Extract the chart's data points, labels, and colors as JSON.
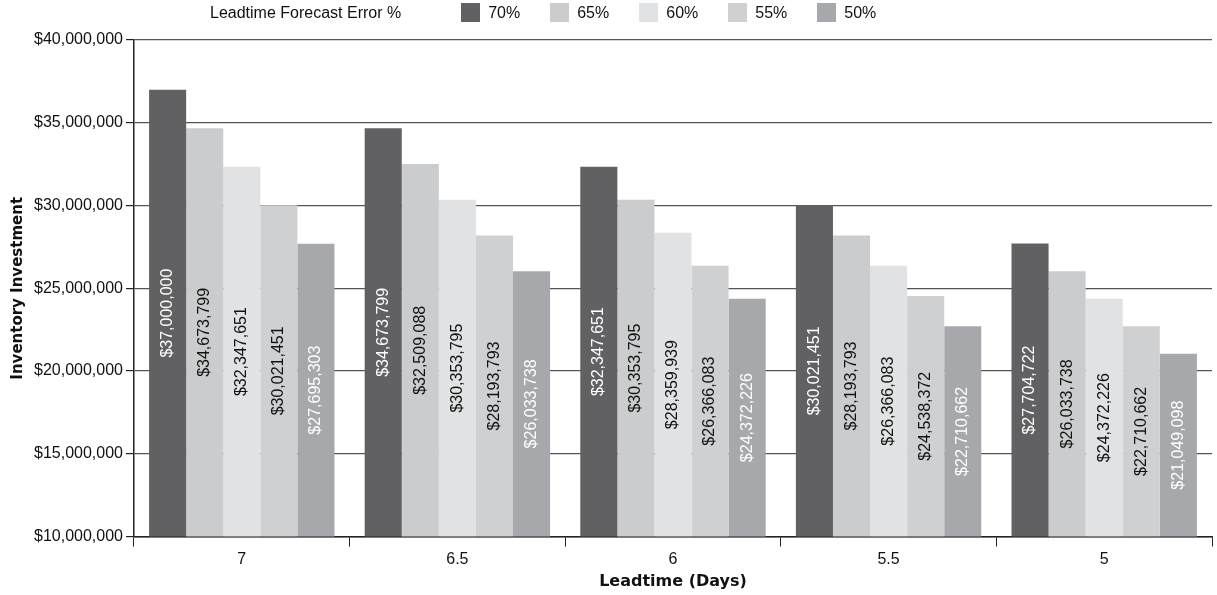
{
  "chart_data": {
    "type": "bar",
    "xlabel": "Leadtime (Days)",
    "ylabel": "Inventory Investment",
    "legend_title": "Leadtime Forecast Error %",
    "categories": [
      "7",
      "6.5",
      "6",
      "5.5",
      "5"
    ],
    "series": [
      {
        "name": "70%",
        "color": "#616163",
        "values": [
          37000000,
          34673799,
          32347651,
          30021451,
          27704722
        ],
        "value_labels": [
          "$37,000,000",
          "$34,673,799",
          "$32,347,651",
          "$30,021,451",
          "$27,704,722"
        ]
      },
      {
        "name": "65%",
        "color": "#cbcccd",
        "values": [
          34673799,
          32509088,
          30353795,
          28193793,
          26033738
        ],
        "value_labels": [
          "$34,673,799",
          "$32,509,088",
          "$30,353,795",
          "$28,193,793",
          "$26,033,738"
        ]
      },
      {
        "name": "60%",
        "color": "#e1e2e3",
        "values": [
          32347651,
          30353795,
          28359939,
          26366083,
          24372226
        ],
        "value_labels": [
          "$32,347,651",
          "$30,353,795",
          "$28,359,939",
          "$26,366,083",
          "$24,372,226"
        ]
      },
      {
        "name": "55%",
        "color": "#cfd0d2",
        "values": [
          30021451,
          28193793,
          26366083,
          24538372,
          22710662
        ],
        "value_labels": [
          "$30,021,451",
          "$28,193,793",
          "$26,366,083",
          "$24,538,372",
          "$22,710,662"
        ]
      },
      {
        "name": "50%",
        "color": "#a7a8ab",
        "values": [
          27695303,
          26033738,
          24372226,
          22710662,
          21049098
        ],
        "value_labels": [
          "$27,695,303",
          "$26,033,738",
          "$24,372,226",
          "$22,710,662",
          "$21,049,098"
        ]
      }
    ],
    "ylim": [
      10000000,
      40000000
    ],
    "yticks": [
      {
        "value": 10000000,
        "label": "$10,000,000"
      },
      {
        "value": 15000000,
        "label": "$15,000,000"
      },
      {
        "value": 20000000,
        "label": "$20,000,000"
      },
      {
        "value": 25000000,
        "label": "$25,000,000"
      },
      {
        "value": 30000000,
        "label": "$30,000,000"
      },
      {
        "value": 35000000,
        "label": "$35,000,000"
      },
      {
        "value": 40000000,
        "label": "$40,000,000"
      }
    ],
    "grid": "y",
    "legend": "top"
  }
}
